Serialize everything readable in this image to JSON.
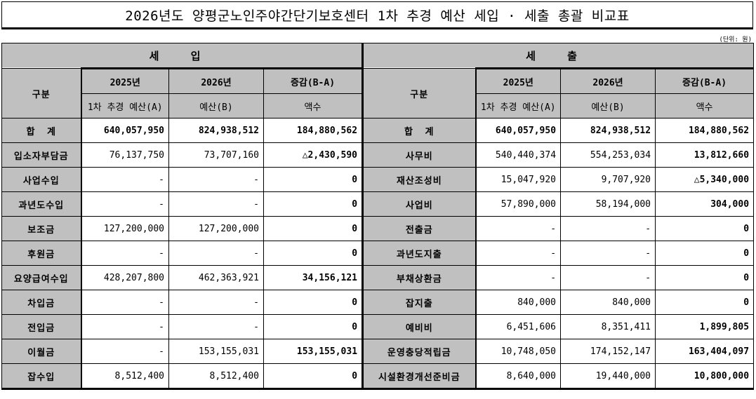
{
  "title": "2026년도 양평군노인주야간단기보호센터 1차 추경 예산 세입 · 세출 총괄 비교표",
  "unit": "(단위: 원)",
  "revenue": {
    "section": "세 입",
    "headers": {
      "category": "구분",
      "y2025": "2025년",
      "y2026": "2026년",
      "diff": "증감(B-A)",
      "y2025_sub": "1차 추경 예산(A)",
      "y2026_sub": "예산(B)",
      "diff_sub": "액수"
    },
    "rows": [
      {
        "name": "합   계",
        "a": "640,057,950",
        "b": "824,938,512",
        "diff": "184,880,562",
        "total": true
      },
      {
        "name": "입소자부담금",
        "a": "76,137,750",
        "b": "73,707,160",
        "diff": "△2,430,590"
      },
      {
        "name": "사업수입",
        "a": "-",
        "b": "-",
        "diff": "0"
      },
      {
        "name": "과년도수입",
        "a": "-",
        "b": "-",
        "diff": "0"
      },
      {
        "name": "보조금",
        "a": "127,200,000",
        "b": "127,200,000",
        "diff": "0"
      },
      {
        "name": "후원금",
        "a": "-",
        "b": "-",
        "diff": "0"
      },
      {
        "name": "요양급여수입",
        "a": "428,207,800",
        "b": "462,363,921",
        "diff": "34,156,121"
      },
      {
        "name": "차입금",
        "a": "-",
        "b": "-",
        "diff": "0"
      },
      {
        "name": "전입금",
        "a": "-",
        "b": "-",
        "diff": "0"
      },
      {
        "name": "이월금",
        "a": "-",
        "b": "153,155,031",
        "diff": "153,155,031"
      },
      {
        "name": "잡수입",
        "a": "8,512,400",
        "b": "8,512,400",
        "diff": "0"
      }
    ]
  },
  "expenditure": {
    "section": "세 출",
    "headers": {
      "category": "구분",
      "y2025": "2025년",
      "y2026": "2026년",
      "diff": "증감(B-A)",
      "y2025_sub": "1차 추경 예산(A)",
      "y2026_sub": "예산(B)",
      "diff_sub": "액수"
    },
    "rows": [
      {
        "name": "합   계",
        "a": "640,057,950",
        "b": "824,938,512",
        "diff": "184,880,562",
        "total": true
      },
      {
        "name": "사무비",
        "a": "540,440,374",
        "b": "554,253,034",
        "diff": "13,812,660"
      },
      {
        "name": "재산조성비",
        "a": "15,047,920",
        "b": "9,707,920",
        "diff": "△5,340,000"
      },
      {
        "name": "사업비",
        "a": "57,890,000",
        "b": "58,194,000",
        "diff": "304,000"
      },
      {
        "name": "전출금",
        "a": "-",
        "b": "-",
        "diff": "0"
      },
      {
        "name": "과년도지출",
        "a": "-",
        "b": "-",
        "diff": "0"
      },
      {
        "name": "부채상환금",
        "a": "-",
        "b": "-",
        "diff": "0"
      },
      {
        "name": "잡지출",
        "a": "840,000",
        "b": "840,000",
        "diff": "0"
      },
      {
        "name": "예비비",
        "a": "6,451,606",
        "b": "8,351,411",
        "diff": "1,899,805"
      },
      {
        "name": "운영충당적립금",
        "a": "10,748,050",
        "b": "174,152,147",
        "diff": "163,404,097"
      },
      {
        "name": "시설환경개선준비금",
        "a": "8,640,000",
        "b": "19,440,000",
        "diff": "10,800,000"
      }
    ]
  }
}
